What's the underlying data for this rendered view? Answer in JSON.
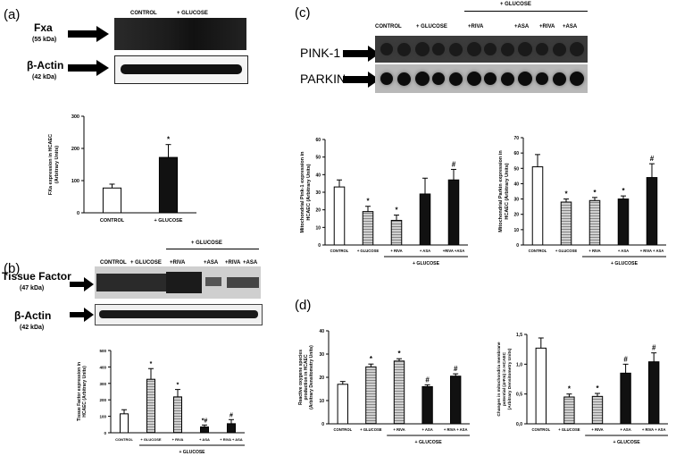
{
  "panels": {
    "a": {
      "label": "(a)",
      "headers": [
        "CONTROL",
        "+ GLUCOSE"
      ],
      "rows": [
        {
          "name": "Fxa",
          "kda": "(55 kDa)"
        },
        {
          "name": "β-Actin",
          "kda": "(42 kDa)"
        }
      ]
    },
    "b": {
      "label": "(b)",
      "group_header": "+ GLUCOSE",
      "headers": [
        "CONTROL",
        "+ GLUCOSE",
        "+RIVA",
        "+ASA",
        "+RIVA",
        "+ASA"
      ],
      "rows": [
        {
          "name": "Tissue Factor",
          "kda": "(47 kDa)"
        },
        {
          "name": "β-Actin",
          "kda": "(42 kDa)"
        }
      ]
    },
    "c": {
      "label": "(c)",
      "group_header": "+ GLUCOSE",
      "headers": [
        "CONTROL",
        "+ GLUCOSE",
        "+RIVA",
        "+ASA",
        "+RIVA",
        "+ASA"
      ],
      "rows": [
        {
          "name": "PINK-1"
        },
        {
          "name": "PARKIN"
        }
      ]
    },
    "d": {
      "label": "(d)"
    }
  },
  "colors": {
    "white": "#ffffff",
    "gray": "#9a9a9a",
    "black": "#111111"
  },
  "chart_data": [
    {
      "id": "a",
      "type": "bar",
      "ylabel": "FXa expression in HCAEC (Arbitrary Units)",
      "ylim": [
        0,
        300
      ],
      "yticks": [
        "0",
        "100",
        "200",
        "300"
      ],
      "categories": [
        "CONTROL",
        "+ GLUCOSE"
      ],
      "values": [
        77,
        172
      ],
      "errors": [
        12,
        40
      ],
      "fills": [
        "white",
        "black"
      ],
      "marks": [
        "",
        "*"
      ]
    },
    {
      "id": "b",
      "type": "bar",
      "ylabel": "Tissue Factor expression in HCAEC (Arbitrary Units)",
      "ylim": [
        0,
        500
      ],
      "yticks": [
        "0",
        "100",
        "200",
        "300",
        "400",
        "500"
      ],
      "categories": [
        "CONTROL",
        "+ GLUCOSE",
        "+ RIVA",
        "+ ASA",
        "+ RIVA + ASA"
      ],
      "values": [
        115,
        325,
        218,
        35,
        55
      ],
      "errors": [
        25,
        65,
        45,
        12,
        25
      ],
      "fills": [
        "white",
        "gray",
        "gray",
        "black",
        "black"
      ],
      "marks": [
        "",
        "*",
        "*",
        "*#",
        "#"
      ],
      "group_label": "+ GLUCOSE"
    },
    {
      "id": "c1",
      "type": "bar",
      "ylabel": "Mitochondrial Pink-1 expression in HCAEC (Arbitrary Units)",
      "ylim": [
        0,
        60
      ],
      "yticks": [
        "0",
        "10",
        "20",
        "30",
        "40",
        "50",
        "60"
      ],
      "categories": [
        "CONTROL",
        "+ GLUCOSE",
        "+ RIVA",
        "+ ASA",
        "+RIVA +ASA"
      ],
      "values": [
        33,
        19,
        14,
        29,
        37
      ],
      "errors": [
        4,
        3,
        3,
        9,
        6
      ],
      "fills": [
        "white",
        "gray",
        "gray",
        "black",
        "black"
      ],
      "marks": [
        "",
        "*",
        "*",
        "",
        "#"
      ],
      "group_label": "+ GLUCOSE"
    },
    {
      "id": "c2",
      "type": "bar",
      "ylabel": "Mitochondrial Parkin expression in HCAEC (Arbitrary Units)",
      "ylim": [
        0,
        70
      ],
      "yticks": [
        "0",
        "10",
        "20",
        "30",
        "40",
        "50",
        "60",
        "70"
      ],
      "categories": [
        "CONTROL",
        "+ GLUCOSE",
        "+ RIVA",
        "+ ASA",
        "+ RIVA + ASA"
      ],
      "values": [
        51,
        28,
        29,
        30,
        44
      ],
      "errors": [
        8,
        2,
        2,
        2,
        9
      ],
      "fills": [
        "white",
        "gray",
        "gray",
        "black",
        "black"
      ],
      "marks": [
        "",
        "*",
        "*",
        "*",
        "#"
      ],
      "group_label": "+ GLUCOSE"
    },
    {
      "id": "d1",
      "type": "bar",
      "ylabel": "Reactive oxygene species production in HCAEC (Arbitrary Densitometry Units)",
      "ylim": [
        0,
        40
      ],
      "yticks": [
        "0",
        "10",
        "20",
        "30",
        "40"
      ],
      "categories": [
        "CONTROL",
        "+ GLUCOSE",
        "+ RIVA",
        "+ ASA",
        "+ RIVA + ASA"
      ],
      "values": [
        17,
        24.5,
        27,
        16,
        20.5
      ],
      "errors": [
        1.2,
        1.2,
        1.0,
        0.8,
        1.0
      ],
      "fills": [
        "white",
        "gray",
        "gray",
        "black",
        "black"
      ],
      "marks": [
        "",
        "*",
        "*",
        "#",
        "#"
      ],
      "group_label": "+ GLUCOSE"
    },
    {
      "id": "d2",
      "type": "bar",
      "ylabel": "Changes in mitochondria membrane potential (ΔΨm) in HCAEC (Arbitrary Densitometry Units)",
      "ylim": [
        0,
        1.5
      ],
      "yticks": [
        "0,0",
        "0,5",
        "1,0",
        "1,5"
      ],
      "categories": [
        "CONTROL",
        "+ GLUCOSE",
        "+ RIVA",
        "+ ASA",
        "+ RIVA + ASA"
      ],
      "values": [
        1.27,
        0.45,
        0.46,
        0.85,
        1.04
      ],
      "errors": [
        0.17,
        0.05,
        0.05,
        0.15,
        0.15
      ],
      "fills": [
        "white",
        "gray",
        "gray",
        "black",
        "black"
      ],
      "marks": [
        "",
        "*",
        "*",
        "#",
        "#"
      ],
      "group_label": "+ GLUCOSE"
    }
  ]
}
